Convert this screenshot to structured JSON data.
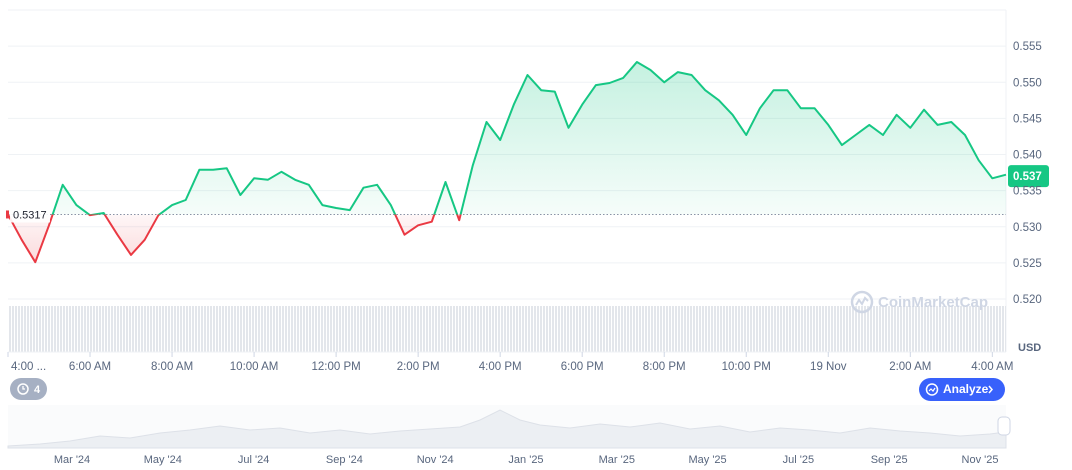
{
  "chart_data": {
    "type": "line",
    "unit": "USD",
    "baseline": 0.5317,
    "current_price": 0.537,
    "color_up": "#16c784",
    "color_down": "#ea3943",
    "grid": true,
    "xlim": [
      0,
      73
    ],
    "xticks": [
      {
        "value": 0,
        "label": "4:00 ..."
      },
      {
        "value": 6,
        "label": "6:00 AM"
      },
      {
        "value": 12,
        "label": "8:00 AM"
      },
      {
        "value": 18,
        "label": "10:00 AM"
      },
      {
        "value": 24,
        "label": "12:00 PM"
      },
      {
        "value": 30,
        "label": "2:00 PM"
      },
      {
        "value": 36,
        "label": "4:00 PM"
      },
      {
        "value": 42,
        "label": "6:00 PM"
      },
      {
        "value": 48,
        "label": "8:00 PM"
      },
      {
        "value": 54,
        "label": "10:00 PM"
      },
      {
        "value": 60,
        "label": "19 Nov"
      },
      {
        "value": 66,
        "label": "2:00 AM"
      },
      {
        "value": 72,
        "label": "4:00 AM"
      }
    ],
    "ylim": [
      0.52,
      0.56
    ],
    "yticks": [
      {
        "value": 0.52,
        "label": "0.520"
      },
      0.525,
      {
        "value": 0.53,
        "label": "0.530"
      },
      0.535,
      {
        "value": 0.54,
        "label": "0.540"
      },
      0.545,
      {
        "value": 0.55,
        "label": "0.550"
      },
      0.555
    ],
    "values": [
      0.5317,
      0.5282,
      0.5251,
      0.5302,
      0.5358,
      0.533,
      0.5316,
      0.5319,
      0.5289,
      0.5261,
      0.5282,
      0.5316,
      0.533,
      0.5337,
      0.5379,
      0.5379,
      0.5381,
      0.5344,
      0.5367,
      0.5365,
      0.5376,
      0.5365,
      0.5358,
      0.533,
      0.5326,
      0.5323,
      0.5354,
      0.5358,
      0.533,
      0.5289,
      0.5302,
      0.5307,
      0.5362,
      0.5309,
      0.5385,
      0.5445,
      0.542,
      0.5469,
      0.551,
      0.5489,
      0.5487,
      0.5437,
      0.5469,
      0.5496,
      0.5499,
      0.5506,
      0.5528,
      0.5517,
      0.55,
      0.5514,
      0.551,
      0.5489,
      0.5475,
      0.5455,
      0.5427,
      0.5464,
      0.5489,
      0.5489,
      0.5464,
      0.5464,
      0.5441,
      0.5413,
      0.5427,
      0.5441,
      0.5427,
      0.5455,
      0.5437,
      0.5462,
      0.5441,
      0.5445,
      0.5427,
      0.5392,
      0.5367,
      0.5372
    ]
  },
  "ui": {
    "watermark": "CoinMarketCap",
    "history_count": 4,
    "analyze_button": "Analyze",
    "navigator_labels": [
      "Mar '24",
      "May '24",
      "Jul '24",
      "Sep '24",
      "Nov '24",
      "Jan '25",
      "Mar '25",
      "May '25",
      "Jul '25",
      "Sep '25",
      "Nov '25"
    ]
  }
}
